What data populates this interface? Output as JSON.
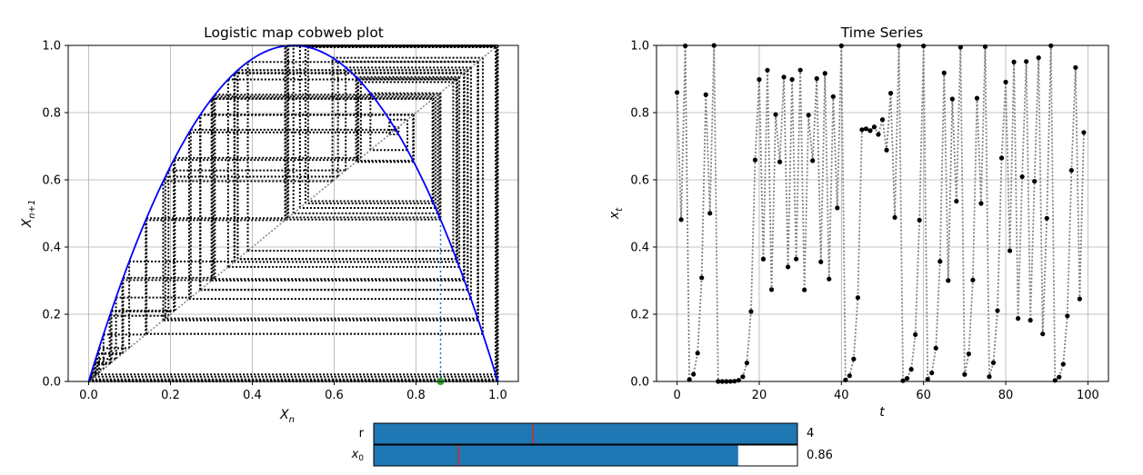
{
  "chart_data": [
    {
      "type": "line",
      "title": "Logistic map cobweb plot",
      "xlabel": "X",
      "xlabel_sub": "n",
      "ylabel": "X",
      "ylabel_sub": "n+1",
      "xlim": [
        -0.05,
        1.05
      ],
      "ylim": [
        0.0,
        1.0
      ],
      "xticks": [
        "0.0",
        "0.2",
        "0.4",
        "0.6",
        "0.8",
        "1.0"
      ],
      "yticks": [
        "0.0",
        "0.2",
        "0.4",
        "0.6",
        "0.8",
        "1.0"
      ],
      "grid": true,
      "r": 4,
      "x0": 0.86,
      "iterations": 100,
      "colors": {
        "parabola": "#0000ff",
        "identity": "#808080",
        "cobweb": "#000000",
        "start_line": "#1f77b4",
        "start_point": "#2ca02c"
      }
    },
    {
      "type": "scatter",
      "title": "Time Series",
      "xlabel": "t",
      "ylabel": "x",
      "ylabel_sub": "t",
      "xlim": [
        -5,
        105
      ],
      "ylim": [
        0.0,
        1.0
      ],
      "xticks": [
        "0",
        "20",
        "40",
        "60",
        "80",
        "100"
      ],
      "yticks": [
        "0.0",
        "0.2",
        "0.4",
        "0.6",
        "0.8",
        "1.0"
      ],
      "grid": true,
      "t_range": [
        0,
        99
      ],
      "colors": {
        "line": "#808080",
        "points": "#000000"
      }
    }
  ],
  "sliders": [
    {
      "label": "r",
      "value_text": "4",
      "min": 0,
      "max": 4,
      "value": 4,
      "initial": 1.5,
      "fill": "#1f77b4",
      "marker": "#d62728"
    },
    {
      "label": "x",
      "label_sub": "0",
      "value_text": "0.86",
      "min": 0,
      "max": 1,
      "value": 0.86,
      "initial": 0.2,
      "fill": "#1f77b4",
      "marker": "#d62728"
    }
  ]
}
